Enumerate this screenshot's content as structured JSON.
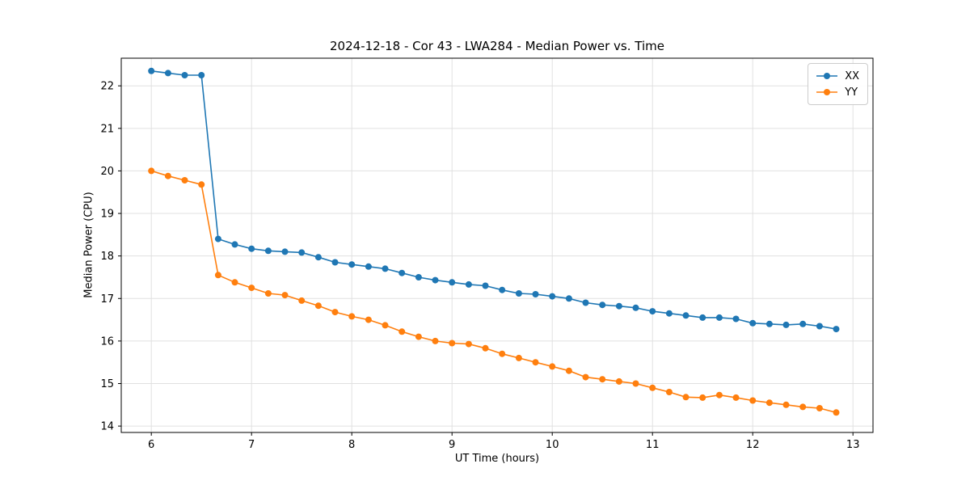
{
  "chart_data": {
    "type": "line",
    "title": "2024-12-18 - Cor 43 - LWA284 - Median Power vs. Time",
    "xlabel": "UT Time (hours)",
    "ylabel": "Median Power (CPU)",
    "xlim": [
      5.7,
      13.2
    ],
    "ylim": [
      13.85,
      22.65
    ],
    "xticks": [
      6,
      7,
      8,
      9,
      10,
      11,
      12,
      13
    ],
    "yticks": [
      14,
      15,
      16,
      17,
      18,
      19,
      20,
      21,
      22
    ],
    "grid": true,
    "legend_position": "upper right",
    "x": [
      6.0,
      6.167,
      6.333,
      6.5,
      6.667,
      6.833,
      7.0,
      7.167,
      7.333,
      7.5,
      7.667,
      7.833,
      8.0,
      8.167,
      8.333,
      8.5,
      8.667,
      8.833,
      9.0,
      9.167,
      9.333,
      9.5,
      9.667,
      9.833,
      10.0,
      10.167,
      10.333,
      10.5,
      10.667,
      10.833,
      11.0,
      11.167,
      11.333,
      11.5,
      11.667,
      11.833,
      12.0,
      12.167,
      12.333,
      12.5,
      12.667,
      12.833
    ],
    "series": [
      {
        "name": "XX",
        "color": "#1f77b4",
        "values": [
          22.35,
          22.3,
          22.25,
          22.25,
          18.4,
          18.27,
          18.17,
          18.12,
          18.1,
          18.08,
          17.97,
          17.85,
          17.8,
          17.75,
          17.7,
          17.6,
          17.5,
          17.43,
          17.38,
          17.33,
          17.3,
          17.2,
          17.12,
          17.1,
          17.05,
          17.0,
          16.9,
          16.85,
          16.82,
          16.78,
          16.7,
          16.65,
          16.6,
          16.55,
          16.55,
          16.52,
          16.42,
          16.4,
          16.38,
          16.4,
          16.35,
          16.28
        ]
      },
      {
        "name": "YY",
        "color": "#ff7f0e",
        "values": [
          20.0,
          19.88,
          19.78,
          19.68,
          17.55,
          17.38,
          17.25,
          17.12,
          17.08,
          16.95,
          16.83,
          16.68,
          16.58,
          16.5,
          16.37,
          16.22,
          16.1,
          16.0,
          15.95,
          15.93,
          15.83,
          15.7,
          15.6,
          15.5,
          15.4,
          15.3,
          15.15,
          15.1,
          15.05,
          15.0,
          14.9,
          14.8,
          14.68,
          14.67,
          14.73,
          14.67,
          14.6,
          14.55,
          14.5,
          14.45,
          14.42,
          14.32
        ]
      }
    ]
  }
}
